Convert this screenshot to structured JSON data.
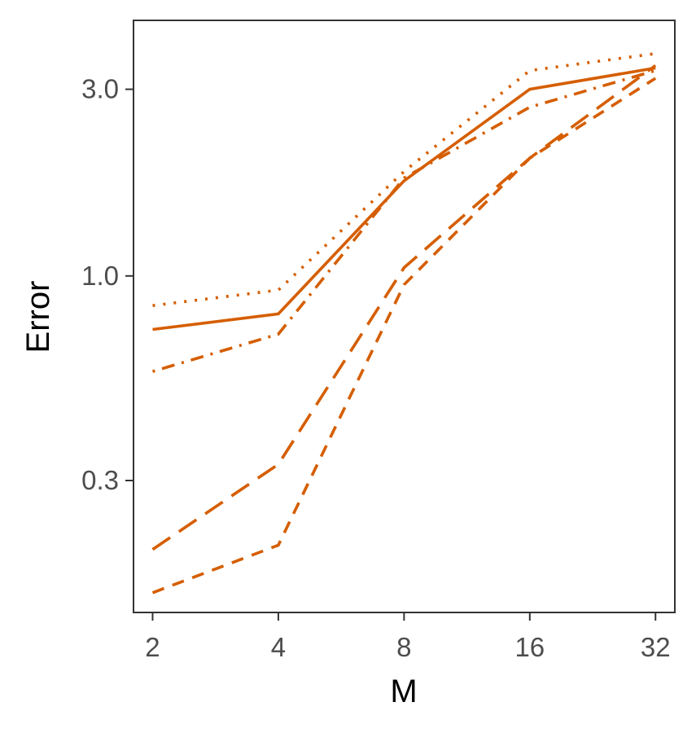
{
  "chart_data": {
    "type": "line",
    "title": "",
    "xlabel": "M",
    "ylabel": "Error",
    "x_scale": "log2",
    "y_scale": "log10",
    "x": [
      2,
      4,
      8,
      16,
      32
    ],
    "x_tick_labels": [
      "2",
      "4",
      "8",
      "16",
      "32"
    ],
    "y_ticks": [
      0.3,
      1.0,
      3.0
    ],
    "y_tick_labels": [
      "0.3",
      "1.0",
      "3.0"
    ],
    "xlim": [
      1.8,
      35.6
    ],
    "ylim": [
      0.138,
      4.5
    ],
    "grid": false,
    "legend": "none",
    "color": "#D55E00",
    "series": [
      {
        "linetype": "solid",
        "values": [
          0.73,
          0.8,
          1.75,
          3.0,
          3.4
        ]
      },
      {
        "linetype": "dotted",
        "values": [
          0.84,
          0.92,
          1.85,
          3.35,
          3.7
        ]
      },
      {
        "linetype": "dotdash",
        "values": [
          0.57,
          0.71,
          1.78,
          2.7,
          3.35
        ]
      },
      {
        "linetype": "longdash",
        "values": [
          0.2,
          0.33,
          1.05,
          2.0,
          3.45
        ]
      },
      {
        "linetype": "dashed",
        "values": [
          0.155,
          0.205,
          0.95,
          2.0,
          3.2
        ]
      }
    ]
  }
}
